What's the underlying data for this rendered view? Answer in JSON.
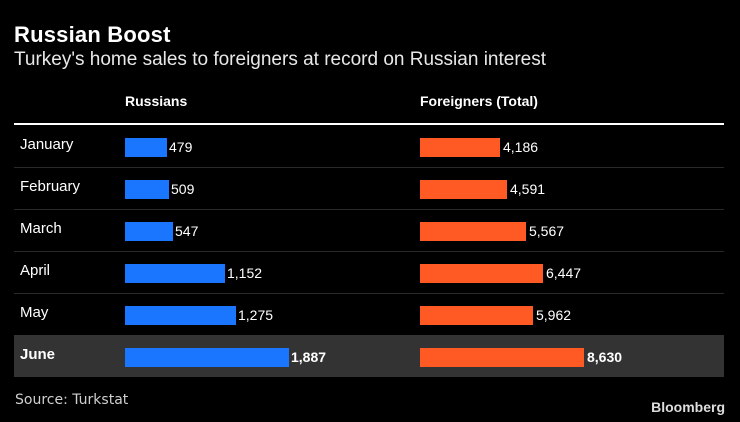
{
  "title": "Russian Boost",
  "subtitle": "Turkey's home sales to foreigners at record on Russian interest",
  "columns": {
    "russians": "Russians",
    "foreigners": "Foreigners (Total)"
  },
  "source": "Source: Turkstat",
  "brand": "Bloomberg",
  "colors": {
    "russians": "#1a75ff",
    "foreigners": "#ff5a24",
    "highlight_row": "#333333"
  },
  "chart_data": {
    "type": "bar",
    "categories": [
      "January",
      "February",
      "March",
      "April",
      "May",
      "June"
    ],
    "series": [
      {
        "name": "Russians",
        "values": [
          479,
          509,
          547,
          1152,
          1275,
          1887
        ],
        "labels": [
          "479",
          "509",
          "547",
          "1,152",
          "1,275",
          "1,887"
        ]
      },
      {
        "name": "Foreigners (Total)",
        "values": [
          4186,
          4591,
          5567,
          6447,
          5962,
          8630
        ],
        "labels": [
          "4,186",
          "4,591",
          "5,567",
          "6,447",
          "5,962",
          "8,630"
        ]
      }
    ],
    "highlighted_category": "June"
  }
}
